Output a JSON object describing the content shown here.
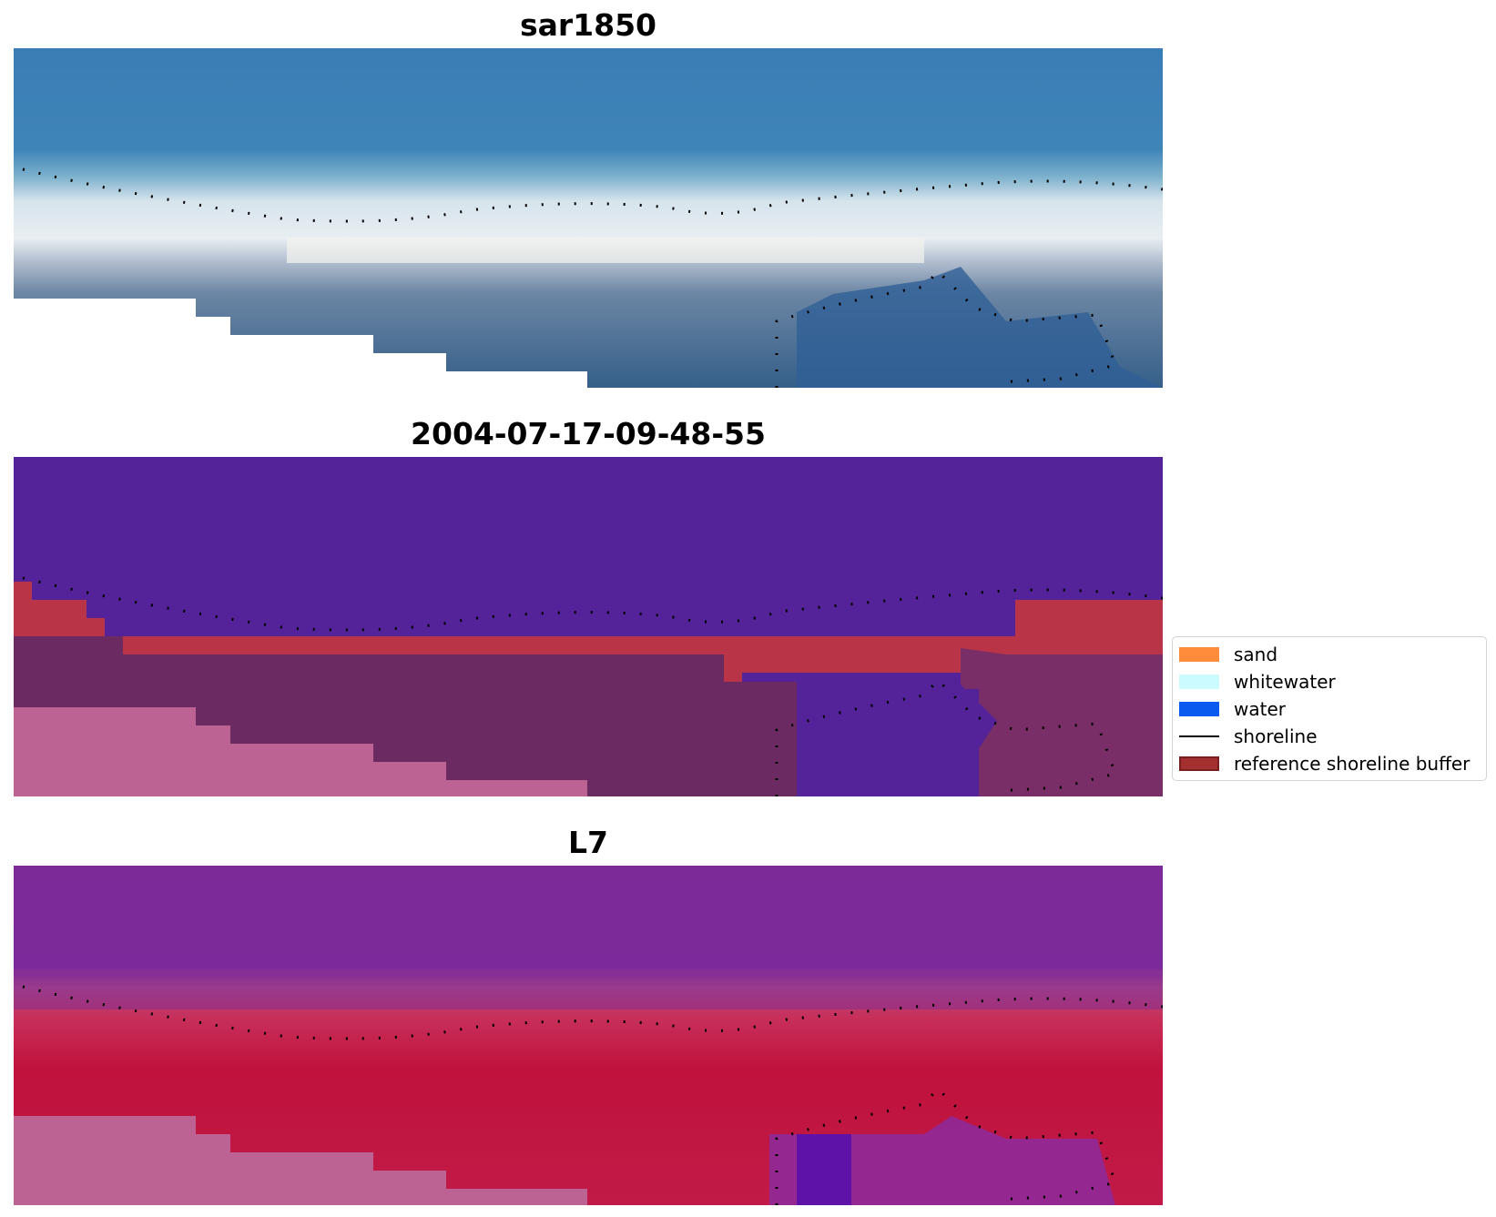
{
  "panels": [
    {
      "title": "sar1850",
      "kind": "rgb"
    },
    {
      "title": "2004-07-17-09-48-55",
      "kind": "classified"
    },
    {
      "title": "L7",
      "kind": "false-color"
    }
  ],
  "legend": {
    "items": [
      {
        "label": "sand",
        "type": "patch",
        "color": "#ff8c3a"
      },
      {
        "label": "whitewater",
        "type": "patch",
        "color": "#ccfbff"
      },
      {
        "label": "water",
        "type": "patch",
        "color": "#0a5af0"
      },
      {
        "label": "shoreline",
        "type": "line",
        "color": "#000000"
      },
      {
        "label": "reference shoreline buffer",
        "type": "patch",
        "color": "#a3302f",
        "edge": "#7a1f1f"
      }
    ]
  },
  "colors": {
    "rgb_ocean": "#3d7fb5",
    "rgb_whitewater": "#e6eef2",
    "rgb_land": "#3b6f98",
    "classified_water": "#54239a",
    "classified_buffer": "#b93446",
    "classified_land": "#6b2b62",
    "classified_nodata": "#bd6393",
    "false_color_water": "#7a2a9a",
    "false_color_land": "#bf1540",
    "false_color_nodata": "#bd6393"
  }
}
